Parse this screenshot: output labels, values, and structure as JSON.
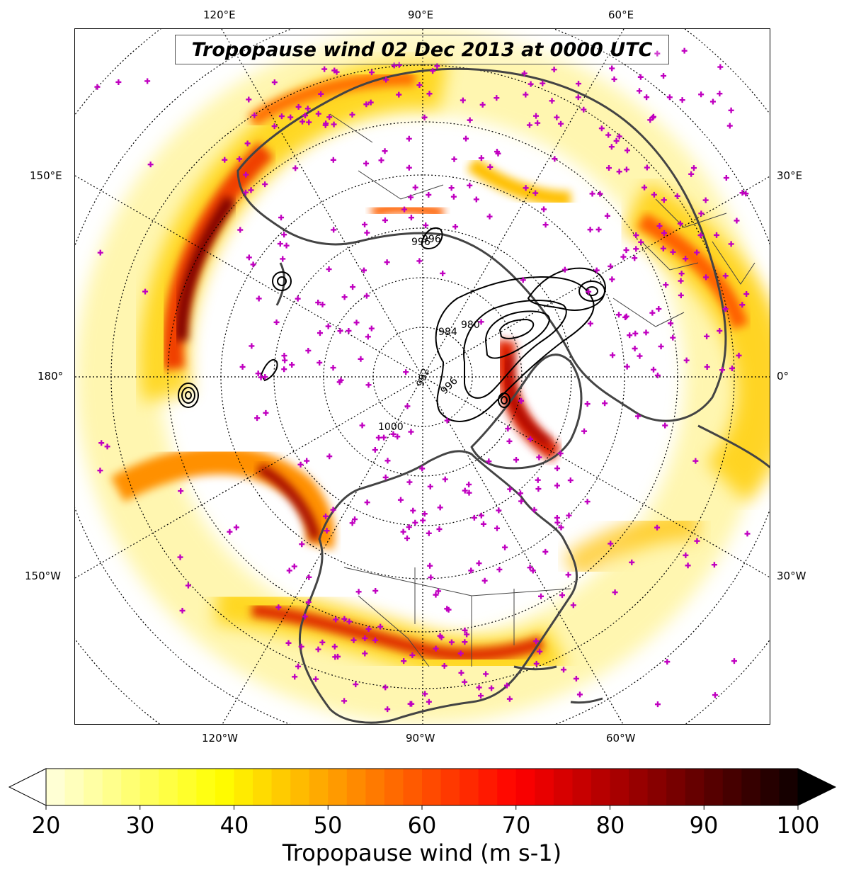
{
  "title": "Tropopause wind 02 Dec 2013 at 0000 UTC",
  "longitude_labels": {
    "top_left": "120°E",
    "top_center": "90°E",
    "top_right": "60°E",
    "left_upper": "150°E",
    "left_middle": "180°",
    "left_lower": "150°W",
    "right_upper": "30°E",
    "right_middle": "0°",
    "right_lower": "30°W",
    "bottom_left": "120°W",
    "bottom_center": "90°W",
    "bottom_right": "60°W"
  },
  "contour_labels": [
    "996",
    "992",
    "996",
    "984",
    "980",
    "1000",
    "996"
  ],
  "colorbar": {
    "label": "Tropopause wind (m s-1)",
    "min": 20,
    "max": 100,
    "ticks": [
      "20",
      "30",
      "40",
      "50",
      "60",
      "70",
      "80",
      "90",
      "100"
    ],
    "colormap": "hot_r",
    "extend": "both"
  },
  "colors": {
    "station_marker": "#c000c0",
    "coastline": "#444444",
    "contour": "#000000"
  }
}
